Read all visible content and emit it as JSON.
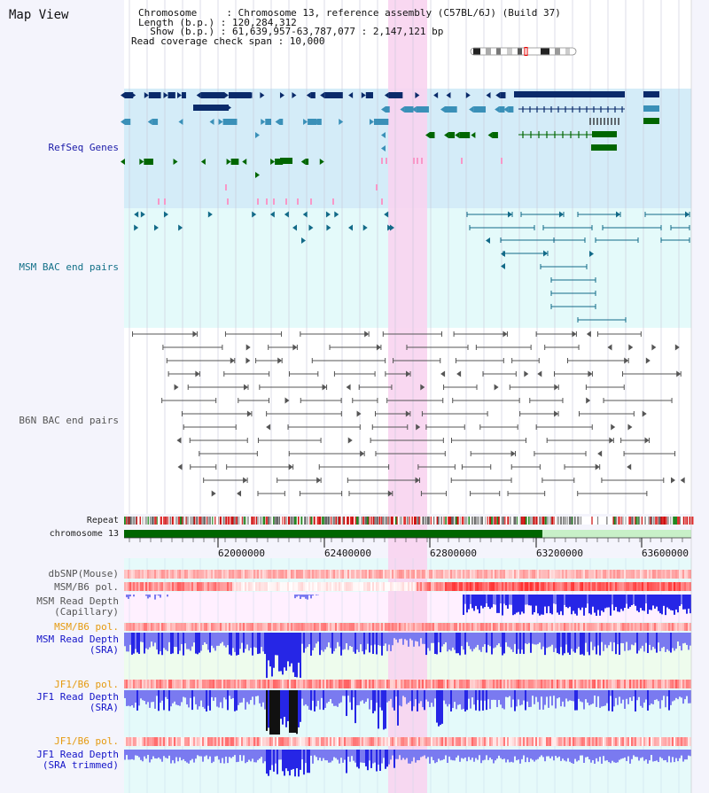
{
  "title": "Map View",
  "info": {
    "chromosome_label": "Chromosome     : Chromosome 13, reference assembly (C57BL/6J) (Build 37)",
    "length_label": "Length (b.p.) : 120,284,312",
    "show_label": "  Show (b.p.) : 61,639,957-63,787,077 : 2,147,121 bp",
    "coverage_label": "Read coverage check span : 10,000"
  },
  "tracks": {
    "refseq": "RefSeq Genes",
    "msm_bac": "MSM BAC end pairs",
    "b6n_bac": "B6N BAC end pairs",
    "repeat": "Repeat",
    "chromosome": "chromosome 13",
    "dbsnp": "dbSNP(Mouse)",
    "msm_b6_pol": "MSM/B6 pol.",
    "msm_depth_cap_1": "MSM Read Depth",
    "msm_depth_cap_2": "(Capillary)",
    "msm_b6_pol2": "MSM/B6 pol.",
    "msm_depth_sra_1": "MSM Read Depth",
    "msm_depth_sra_2": "(SRA)",
    "jf1_b6_pol": "JF1/B6 pol.",
    "jf1_depth_sra_1": "JF1 Read Depth",
    "jf1_depth_sra_2": "(SRA)",
    "jf1_b6_pol2": "JF1/B6 pol.",
    "jf1_trim_1": "JF1 Read Depth",
    "jf1_trim_2": "(SRA trimmed)"
  },
  "axis": {
    "ticks": [
      "62000000",
      "62400000",
      "62800000",
      "63200000",
      "63600000"
    ]
  },
  "colors": {
    "refseq_bg": "#d4ecf8",
    "bac_bg": "#e4fafa",
    "highlight": "#f8d4f0",
    "chrom": "#006600",
    "dark_blue": "#0a2a6a",
    "green": "#006600",
    "teal": "#3a90b8",
    "pink": "#f898c8",
    "depth_blue": "#2626e6",
    "depth_light": "#7a7af0"
  }
}
